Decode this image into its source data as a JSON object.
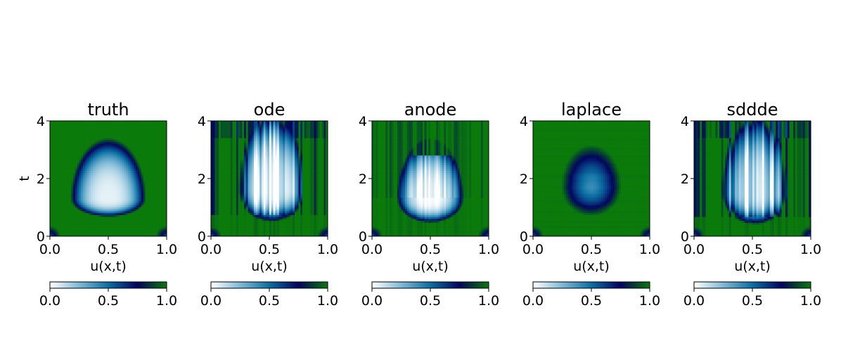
{
  "chart_data": [
    {
      "type": "heatmap",
      "title": "truth",
      "xlabel": "u(x,t)",
      "ylabel": "t",
      "xlim": [
        0.0,
        1.0
      ],
      "ylim": [
        0,
        4
      ],
      "x_ticks": [
        "0.0",
        "0.5",
        "1.0"
      ],
      "y_ticks": [
        "0",
        "2",
        "4"
      ],
      "colorbar": {
        "range": [
          0.0,
          1.0
        ],
        "ticks": [
          "0.0",
          "0.5",
          "1.0"
        ]
      },
      "pattern": {
        "style": "smooth",
        "center_x": 0.5,
        "peak_t": 1.3,
        "half_width": 0.34,
        "top_t": 3.1,
        "floor_t": 0.9,
        "min_value": 0.05,
        "corner_blobs": true
      }
    },
    {
      "type": "heatmap",
      "title": "ode",
      "xlabel": "u(x,t)",
      "ylabel": "",
      "xlim": [
        0.0,
        1.0
      ],
      "ylim": [
        0,
        4
      ],
      "x_ticks": [
        "0.0",
        "0.5",
        "1.0"
      ],
      "y_ticks": [
        "0",
        "2",
        "4"
      ],
      "colorbar": {
        "range": [
          0.0,
          1.0
        ],
        "ticks": [
          "0.0",
          "0.5",
          "1.0"
        ]
      },
      "pattern": {
        "style": "streaky",
        "center_x": 0.52,
        "peak_t": 1.6,
        "half_width": 0.31,
        "top_t": 4.0,
        "floor_t": 0.75,
        "min_value": 0.0,
        "corner_blobs": true
      }
    },
    {
      "type": "heatmap",
      "title": "anode",
      "xlabel": "u(x,t)",
      "ylabel": "",
      "xlim": [
        0.0,
        1.0
      ],
      "ylim": [
        0,
        4
      ],
      "x_ticks": [
        "0.0",
        "0.5",
        "1.0"
      ],
      "y_ticks": [
        "0",
        "2",
        "4"
      ],
      "colorbar": {
        "range": [
          0.0,
          1.0
        ],
        "ticks": [
          "0.0",
          "0.5",
          "1.0"
        ]
      },
      "pattern": {
        "style": "semi-streaky",
        "center_x": 0.5,
        "peak_t": 1.3,
        "half_width": 0.3,
        "top_t": 3.1,
        "floor_t": 0.7,
        "min_value": 0.0,
        "corner_blobs": true
      }
    },
    {
      "type": "heatmap",
      "title": "laplace",
      "xlabel": "u(x,t)",
      "ylabel": "",
      "xlim": [
        0.0,
        1.0
      ],
      "ylim": [
        0,
        4
      ],
      "x_ticks": [
        "0.0",
        "0.5",
        "1.0"
      ],
      "y_ticks": [
        "0",
        "2",
        "4"
      ],
      "colorbar": {
        "range": [
          0.0,
          1.0
        ],
        "ticks": [
          "0.0",
          "0.5",
          "1.0"
        ]
      },
      "pattern": {
        "style": "dome",
        "center_x": 0.5,
        "peak_t": 1.7,
        "half_width": 0.27,
        "top_t": 2.9,
        "floor_t": 0.95,
        "min_value": 0.4,
        "corner_blobs": true
      }
    },
    {
      "type": "heatmap",
      "title": "sddde",
      "xlabel": "u(x,t)",
      "ylabel": "",
      "xlim": [
        0.0,
        1.0
      ],
      "ylim": [
        0,
        4
      ],
      "x_ticks": [
        "0.0",
        "0.5",
        "1.0"
      ],
      "y_ticks": [
        "0",
        "2",
        "4"
      ],
      "colorbar": {
        "range": [
          0.0,
          1.0
        ],
        "ticks": [
          "0.0",
          "0.5",
          "1.0"
        ]
      },
      "pattern": {
        "style": "streaky",
        "center_x": 0.52,
        "peak_t": 1.5,
        "half_width": 0.3,
        "top_t": 4.0,
        "floor_t": 0.65,
        "min_value": 0.0,
        "corner_blobs": true
      }
    }
  ],
  "colormap": {
    "stops": [
      {
        "at": 0.0,
        "color": "#ffffff"
      },
      {
        "at": 0.25,
        "color": "#7fbad6"
      },
      {
        "at": 0.5,
        "color": "#0b6fa3"
      },
      {
        "at": 0.75,
        "color": "#03045e"
      },
      {
        "at": 1.0,
        "color": "#0a7a0a"
      }
    ]
  }
}
